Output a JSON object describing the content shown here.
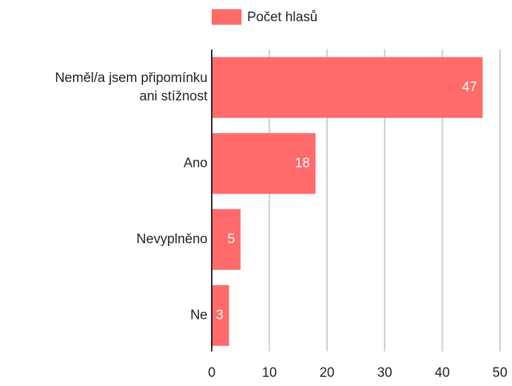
{
  "chart_data": {
    "type": "barh",
    "categories": [
      "Neměl/a jsem připomínku\nani stížnost",
      "Ano",
      "Nevyplněno",
      "Ne"
    ],
    "series": [
      {
        "name": "Počet hlasů",
        "color": "#ff6a6a",
        "values": [
          47,
          18,
          5,
          3
        ]
      }
    ],
    "xlim": [
      0,
      50
    ],
    "xticks": [
      0,
      10,
      20,
      30,
      40,
      50
    ],
    "grid": true,
    "legend": "top"
  }
}
